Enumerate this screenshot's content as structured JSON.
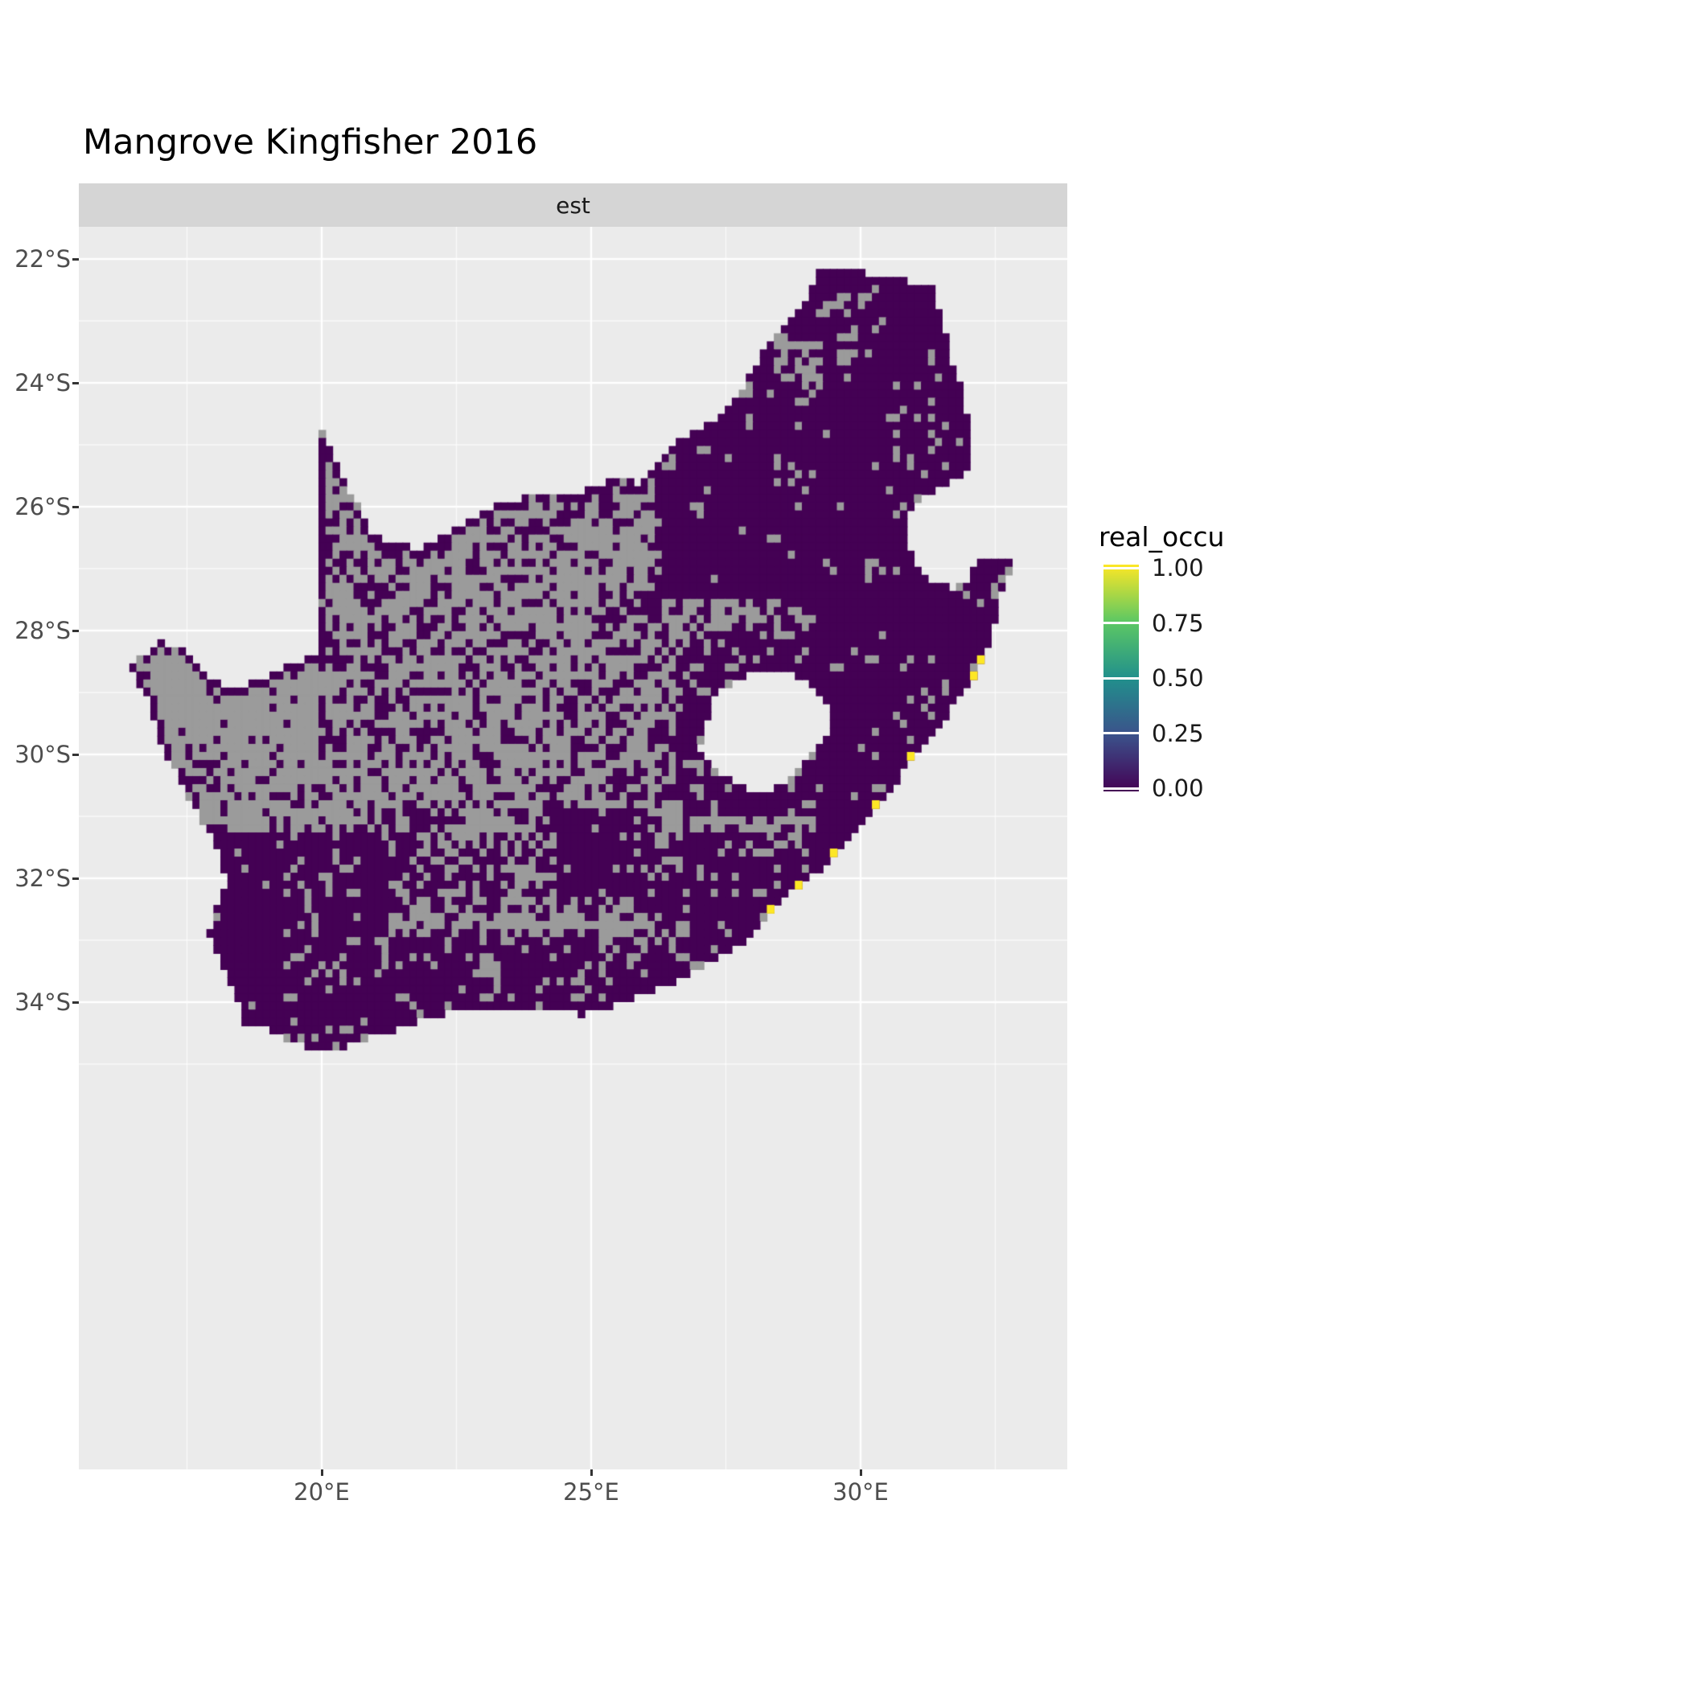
{
  "title": "Mangrove Kingfisher 2016",
  "facet_label": "est",
  "legend": {
    "title": "real_occu",
    "entries": [
      {
        "label": "1.00",
        "value": 1
      },
      {
        "label": "0.75",
        "value": 0.75
      },
      {
        "label": "0.50",
        "value": 0.5
      },
      {
        "label": "0.25",
        "value": 0.25
      },
      {
        "label": "0.00",
        "value": 0
      }
    ]
  },
  "axes": {
    "x": {
      "ticks": [
        {
          "label": "20°E",
          "lon": 20
        },
        {
          "label": "25°E",
          "lon": 25
        },
        {
          "label": "30°E",
          "lon": 30
        }
      ]
    },
    "y": {
      "ticks": [
        {
          "label": "22°S",
          "lat": 22
        },
        {
          "label": "24°S",
          "lat": 24
        },
        {
          "label": "26°S",
          "lat": 26
        },
        {
          "label": "28°S",
          "lat": 28
        },
        {
          "label": "30°S",
          "lat": 30
        },
        {
          "label": "32°S",
          "lat": 32
        },
        {
          "label": "34°S",
          "lat": 34
        }
      ]
    }
  },
  "chart_data": {
    "type": "heatmap",
    "title": "Mangrove Kingfisher 2016",
    "facet": "est",
    "region": "South Africa",
    "legend_title": "real_occu",
    "scale": {
      "limits": [
        0,
        1
      ],
      "breaks": [
        0,
        0.25,
        0.5,
        0.75,
        1
      ],
      "palette": [
        {
          "value": 0,
          "color": "#440154"
        },
        {
          "value": 0.25,
          "color": "#3B528B"
        },
        {
          "value": 0.5,
          "color": "#21908C"
        },
        {
          "value": 0.75,
          "color": "#5DC863"
        },
        {
          "value": 1,
          "color": "#FDE725"
        }
      ],
      "na_color": "#9B9B9B"
    },
    "map_extent": {
      "lon": [
        16.45,
        32.9
      ],
      "lat_south": [
        22.1,
        34.85
      ]
    },
    "cell_size_deg": 0.13,
    "base_density": 0.3,
    "panel_background": "#EBEBEB",
    "strip_background": "#D5D5D5",
    "outline": [
      [
        16.45,
        28.6
      ],
      [
        16.95,
        28.2
      ],
      [
        17.35,
        28.22
      ],
      [
        17.7,
        28.6
      ],
      [
        18.2,
        28.88
      ],
      [
        18.8,
        28.85
      ],
      [
        19.4,
        28.52
      ],
      [
        19.98,
        28.4
      ],
      [
        19.98,
        24.78
      ],
      [
        20.2,
        25.1
      ],
      [
        20.42,
        25.55
      ],
      [
        20.65,
        25.98
      ],
      [
        20.88,
        26.38
      ],
      [
        21.3,
        26.62
      ],
      [
        21.9,
        26.66
      ],
      [
        22.55,
        26.3
      ],
      [
        23.25,
        25.98
      ],
      [
        23.95,
        25.8
      ],
      [
        24.75,
        25.8
      ],
      [
        25.4,
        25.58
      ],
      [
        25.95,
        25.62
      ],
      [
        26.5,
        25.05
      ],
      [
        26.9,
        24.75
      ],
      [
        27.4,
        24.55
      ],
      [
        27.9,
        23.95
      ],
      [
        28.35,
        23.3
      ],
      [
        28.95,
        22.7
      ],
      [
        29.25,
        22.15
      ],
      [
        29.9,
        22.2
      ],
      [
        30.55,
        22.3
      ],
      [
        31.3,
        22.42
      ],
      [
        31.52,
        22.98
      ],
      [
        31.68,
        23.62
      ],
      [
        31.92,
        24.22
      ],
      [
        32.03,
        24.85
      ],
      [
        31.97,
        25.42
      ],
      [
        31.55,
        25.7
      ],
      [
        31.15,
        25.8
      ],
      [
        30.92,
        26.0
      ],
      [
        30.8,
        26.3
      ],
      [
        30.85,
        26.62
      ],
      [
        31.05,
        26.92
      ],
      [
        31.32,
        27.18
      ],
      [
        31.7,
        27.32
      ],
      [
        31.98,
        27.25
      ],
      [
        32.12,
        26.86
      ],
      [
        32.89,
        26.86
      ],
      [
        32.55,
        27.55
      ],
      [
        32.42,
        28.2
      ],
      [
        32.1,
        28.8
      ],
      [
        31.6,
        29.35
      ],
      [
        31.05,
        29.9
      ],
      [
        30.45,
        30.75
      ],
      [
        29.95,
        31.2
      ],
      [
        29.55,
        31.62
      ],
      [
        28.95,
        32.05
      ],
      [
        28.4,
        32.45
      ],
      [
        27.9,
        33.02
      ],
      [
        27.2,
        33.35
      ],
      [
        26.5,
        33.7
      ],
      [
        25.65,
        33.98
      ],
      [
        24.85,
        34.2
      ],
      [
        24.0,
        34.1
      ],
      [
        23.05,
        34.1
      ],
      [
        22.15,
        34.2
      ],
      [
        21.3,
        34.45
      ],
      [
        20.45,
        34.7
      ],
      [
        20.0,
        34.83
      ],
      [
        19.4,
        34.62
      ],
      [
        18.85,
        34.38
      ],
      [
        18.5,
        34.32
      ],
      [
        18.44,
        33.95
      ],
      [
        18.18,
        33.4
      ],
      [
        17.9,
        32.85
      ],
      [
        18.22,
        32.05
      ],
      [
        18.1,
        31.6
      ],
      [
        17.55,
        30.7
      ],
      [
        17.05,
        29.9
      ],
      [
        16.78,
        29.15
      ],
      [
        16.45,
        28.6
      ]
    ],
    "lesotho_hole": [
      [
        27.05,
        29.65
      ],
      [
        27.3,
        29.08
      ],
      [
        27.58,
        28.83
      ],
      [
        28.08,
        28.63
      ],
      [
        28.62,
        28.6
      ],
      [
        29.12,
        28.92
      ],
      [
        29.42,
        29.28
      ],
      [
        29.44,
        29.58
      ],
      [
        29.12,
        29.98
      ],
      [
        28.68,
        30.38
      ],
      [
        28.12,
        30.66
      ],
      [
        27.58,
        30.44
      ],
      [
        27.24,
        30.14
      ],
      [
        27.02,
        29.92
      ]
    ],
    "occupancy_one_cells": [
      [
        32.4,
        28.38
      ],
      [
        32.28,
        28.62
      ],
      [
        32.02,
        29.28
      ],
      [
        31.1,
        29.98
      ],
      [
        30.3,
        30.88
      ],
      [
        29.5,
        31.66
      ],
      [
        28.8,
        32.18
      ],
      [
        28.42,
        32.62
      ]
    ],
    "density_regions": [
      {
        "box": [
          16.3,
          27.8,
          20.3,
          31.3
        ],
        "p": 0.18
      },
      {
        "box": [
          20.0,
          25.8,
          26.6,
          28.5
        ],
        "p": 0.3
      },
      {
        "box": [
          19.8,
          28.5,
          26.9,
          31.0
        ],
        "p": 0.33
      },
      {
        "box": [
          25.2,
          27.3,
          29.5,
          30.7
        ],
        "p": 0.5
      },
      {
        "box": [
          26.6,
          28.2,
          30.0,
          31.0
        ],
        "p": 0.78
      },
      {
        "box": [
          20.8,
          30.9,
          26.3,
          32.5
        ],
        "p": 0.52
      },
      {
        "box": [
          24.3,
          30.9,
          26.1,
          32.3
        ],
        "p": 0.93
      },
      {
        "box": [
          17.7,
          31.2,
          21.3,
          35.0
        ],
        "p": 0.88
      },
      {
        "box": [
          18.8,
          32.9,
          28.1,
          35.0
        ],
        "p": 0.85
      },
      {
        "box": [
          26.0,
          31.2,
          30.1,
          33.4
        ],
        "p": 0.8
      },
      {
        "box": [
          29.2,
          26.8,
          33.0,
          31.8
        ],
        "p": 0.97
      },
      {
        "box": [
          26.2,
          24.2,
          31.2,
          27.5
        ],
        "p": 0.96
      },
      {
        "box": [
          27.3,
          21.9,
          30.5,
          24.2
        ],
        "p": 0.75
      },
      {
        "box": [
          30.4,
          21.9,
          33.0,
          25.7
        ],
        "p": 0.9
      },
      {
        "box": [
          24.0,
          24.4,
          26.3,
          26.3
        ],
        "p": 0.55
      },
      {
        "box": [
          31.9,
          26.8,
          33.0,
          28.7
        ],
        "p": 0.95
      }
    ]
  }
}
